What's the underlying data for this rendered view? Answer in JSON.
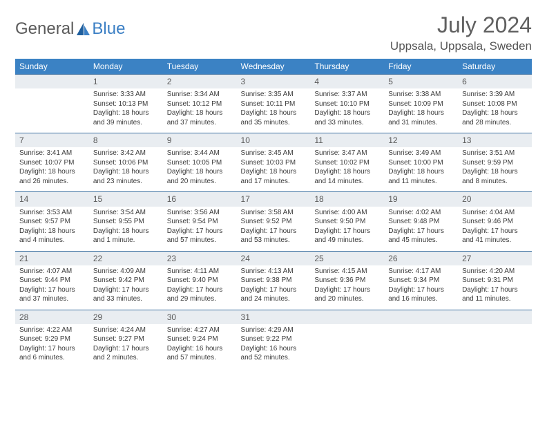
{
  "brand": {
    "word1": "General",
    "word2": "Blue"
  },
  "title": "July 2024",
  "location": "Uppsala, Uppsala, Sweden",
  "colors": {
    "header_bg": "#3b82c4",
    "header_text": "#ffffff",
    "daynum_bg": "#e9edf1",
    "row_border": "#3b6fa0",
    "logo_gray": "#5a5a5a",
    "logo_blue": "#3b7fc4"
  },
  "weekdays": [
    "Sunday",
    "Monday",
    "Tuesday",
    "Wednesday",
    "Thursday",
    "Friday",
    "Saturday"
  ],
  "start_offset": 1,
  "days": [
    {
      "n": 1,
      "sr": "3:33 AM",
      "ss": "10:13 PM",
      "dl": "18 hours and 39 minutes."
    },
    {
      "n": 2,
      "sr": "3:34 AM",
      "ss": "10:12 PM",
      "dl": "18 hours and 37 minutes."
    },
    {
      "n": 3,
      "sr": "3:35 AM",
      "ss": "10:11 PM",
      "dl": "18 hours and 35 minutes."
    },
    {
      "n": 4,
      "sr": "3:37 AM",
      "ss": "10:10 PM",
      "dl": "18 hours and 33 minutes."
    },
    {
      "n": 5,
      "sr": "3:38 AM",
      "ss": "10:09 PM",
      "dl": "18 hours and 31 minutes."
    },
    {
      "n": 6,
      "sr": "3:39 AM",
      "ss": "10:08 PM",
      "dl": "18 hours and 28 minutes."
    },
    {
      "n": 7,
      "sr": "3:41 AM",
      "ss": "10:07 PM",
      "dl": "18 hours and 26 minutes."
    },
    {
      "n": 8,
      "sr": "3:42 AM",
      "ss": "10:06 PM",
      "dl": "18 hours and 23 minutes."
    },
    {
      "n": 9,
      "sr": "3:44 AM",
      "ss": "10:05 PM",
      "dl": "18 hours and 20 minutes."
    },
    {
      "n": 10,
      "sr": "3:45 AM",
      "ss": "10:03 PM",
      "dl": "18 hours and 17 minutes."
    },
    {
      "n": 11,
      "sr": "3:47 AM",
      "ss": "10:02 PM",
      "dl": "18 hours and 14 minutes."
    },
    {
      "n": 12,
      "sr": "3:49 AM",
      "ss": "10:00 PM",
      "dl": "18 hours and 11 minutes."
    },
    {
      "n": 13,
      "sr": "3:51 AM",
      "ss": "9:59 PM",
      "dl": "18 hours and 8 minutes."
    },
    {
      "n": 14,
      "sr": "3:53 AM",
      "ss": "9:57 PM",
      "dl": "18 hours and 4 minutes."
    },
    {
      "n": 15,
      "sr": "3:54 AM",
      "ss": "9:55 PM",
      "dl": "18 hours and 1 minute."
    },
    {
      "n": 16,
      "sr": "3:56 AM",
      "ss": "9:54 PM",
      "dl": "17 hours and 57 minutes."
    },
    {
      "n": 17,
      "sr": "3:58 AM",
      "ss": "9:52 PM",
      "dl": "17 hours and 53 minutes."
    },
    {
      "n": 18,
      "sr": "4:00 AM",
      "ss": "9:50 PM",
      "dl": "17 hours and 49 minutes."
    },
    {
      "n": 19,
      "sr": "4:02 AM",
      "ss": "9:48 PM",
      "dl": "17 hours and 45 minutes."
    },
    {
      "n": 20,
      "sr": "4:04 AM",
      "ss": "9:46 PM",
      "dl": "17 hours and 41 minutes."
    },
    {
      "n": 21,
      "sr": "4:07 AM",
      "ss": "9:44 PM",
      "dl": "17 hours and 37 minutes."
    },
    {
      "n": 22,
      "sr": "4:09 AM",
      "ss": "9:42 PM",
      "dl": "17 hours and 33 minutes."
    },
    {
      "n": 23,
      "sr": "4:11 AM",
      "ss": "9:40 PM",
      "dl": "17 hours and 29 minutes."
    },
    {
      "n": 24,
      "sr": "4:13 AM",
      "ss": "9:38 PM",
      "dl": "17 hours and 24 minutes."
    },
    {
      "n": 25,
      "sr": "4:15 AM",
      "ss": "9:36 PM",
      "dl": "17 hours and 20 minutes."
    },
    {
      "n": 26,
      "sr": "4:17 AM",
      "ss": "9:34 PM",
      "dl": "17 hours and 16 minutes."
    },
    {
      "n": 27,
      "sr": "4:20 AM",
      "ss": "9:31 PM",
      "dl": "17 hours and 11 minutes."
    },
    {
      "n": 28,
      "sr": "4:22 AM",
      "ss": "9:29 PM",
      "dl": "17 hours and 6 minutes."
    },
    {
      "n": 29,
      "sr": "4:24 AM",
      "ss": "9:27 PM",
      "dl": "17 hours and 2 minutes."
    },
    {
      "n": 30,
      "sr": "4:27 AM",
      "ss": "9:24 PM",
      "dl": "16 hours and 57 minutes."
    },
    {
      "n": 31,
      "sr": "4:29 AM",
      "ss": "9:22 PM",
      "dl": "16 hours and 52 minutes."
    }
  ],
  "labels": {
    "sunrise": "Sunrise:",
    "sunset": "Sunset:",
    "daylight": "Daylight:"
  }
}
